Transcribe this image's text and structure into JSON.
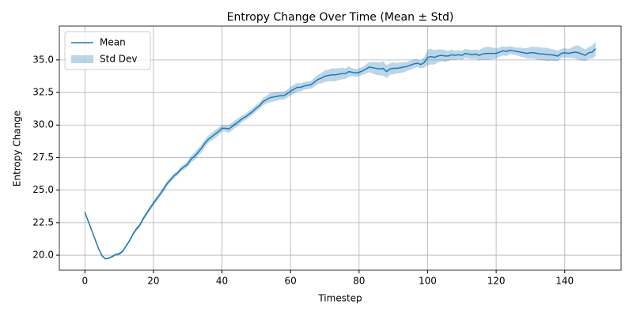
{
  "chart_data": {
    "type": "line",
    "title": "Entropy Change Over Time (Mean ± Std)",
    "x_label": "Timestep",
    "y_label": "Entropy Change",
    "x": [
      0,
      1,
      2,
      3,
      4,
      5,
      6,
      7,
      8,
      9,
      10,
      11,
      12,
      13,
      14,
      15,
      16,
      17,
      18,
      19,
      20,
      21,
      22,
      23,
      24,
      25,
      26,
      27,
      28,
      29,
      30,
      31,
      32,
      33,
      34,
      35,
      36,
      37,
      38,
      39,
      40,
      41,
      42,
      43,
      44,
      45,
      46,
      47,
      48,
      49,
      50,
      51,
      52,
      53,
      54,
      55,
      56,
      57,
      58,
      59,
      60,
      61,
      62,
      63,
      64,
      65,
      66,
      67,
      68,
      69,
      70,
      71,
      72,
      73,
      74,
      75,
      76,
      77,
      78,
      79,
      80,
      81,
      82,
      83,
      84,
      85,
      86,
      87,
      88,
      89,
      90,
      91,
      92,
      93,
      94,
      95,
      96,
      97,
      98,
      99,
      100,
      101,
      102,
      103,
      104,
      105,
      106,
      107,
      108,
      109,
      110,
      111,
      112,
      113,
      114,
      115,
      116,
      117,
      118,
      119,
      120,
      121,
      122,
      123,
      124,
      125,
      126,
      127,
      128,
      129,
      130,
      131,
      132,
      133,
      134,
      135,
      136,
      137,
      138,
      139,
      140,
      141,
      142,
      143,
      144,
      145,
      146,
      147,
      148,
      149
    ],
    "series": [
      {
        "name": "Mean",
        "color": "#1f77b4",
        "values": [
          23.3,
          22.6,
          21.9,
          21.2,
          20.5,
          19.95,
          19.72,
          19.78,
          19.9,
          20.05,
          20.1,
          20.3,
          20.7,
          21.1,
          21.6,
          22.0,
          22.3,
          22.8,
          23.2,
          23.6,
          24.0,
          24.35,
          24.7,
          25.1,
          25.5,
          25.8,
          26.1,
          26.3,
          26.6,
          26.8,
          27.0,
          27.4,
          27.6,
          27.9,
          28.2,
          28.6,
          28.9,
          29.1,
          29.3,
          29.5,
          29.75,
          29.75,
          29.7,
          29.9,
          30.1,
          30.3,
          30.5,
          30.65,
          30.85,
          31.05,
          31.3,
          31.5,
          31.8,
          31.95,
          32.1,
          32.15,
          32.2,
          32.25,
          32.25,
          32.4,
          32.6,
          32.75,
          32.9,
          32.9,
          33.0,
          33.05,
          33.1,
          33.3,
          33.5,
          33.6,
          33.75,
          33.8,
          33.85,
          33.85,
          33.9,
          33.95,
          33.95,
          34.1,
          34.05,
          34.0,
          34.05,
          34.15,
          34.3,
          34.45,
          34.4,
          34.35,
          34.3,
          34.35,
          34.1,
          34.3,
          34.35,
          34.35,
          34.4,
          34.45,
          34.5,
          34.6,
          34.7,
          34.75,
          34.65,
          34.8,
          35.2,
          35.25,
          35.2,
          35.3,
          35.35,
          35.3,
          35.3,
          35.4,
          35.35,
          35.4,
          35.35,
          35.5,
          35.45,
          35.4,
          35.45,
          35.35,
          35.45,
          35.5,
          35.5,
          35.5,
          35.5,
          35.6,
          35.7,
          35.65,
          35.75,
          35.7,
          35.65,
          35.6,
          35.55,
          35.5,
          35.55,
          35.55,
          35.5,
          35.45,
          35.45,
          35.4,
          35.4,
          35.35,
          35.3,
          35.5,
          35.55,
          35.5,
          35.55,
          35.6,
          35.55,
          35.45,
          35.35,
          35.55,
          35.6,
          35.85
        ]
      },
      {
        "name": "Std Dev",
        "color": "#1f77b4",
        "values": [
          0.05,
          0.05,
          0.05,
          0.05,
          0.05,
          0.06,
          0.06,
          0.07,
          0.08,
          0.1,
          0.12,
          0.12,
          0.12,
          0.13,
          0.14,
          0.15,
          0.15,
          0.16,
          0.17,
          0.18,
          0.2,
          0.2,
          0.2,
          0.22,
          0.2,
          0.2,
          0.2,
          0.18,
          0.2,
          0.2,
          0.22,
          0.25,
          0.3,
          0.3,
          0.3,
          0.28,
          0.28,
          0.3,
          0.3,
          0.3,
          0.25,
          0.25,
          0.3,
          0.3,
          0.3,
          0.28,
          0.25,
          0.25,
          0.25,
          0.25,
          0.25,
          0.25,
          0.3,
          0.3,
          0.35,
          0.35,
          0.35,
          0.3,
          0.3,
          0.3,
          0.35,
          0.35,
          0.35,
          0.3,
          0.3,
          0.3,
          0.3,
          0.35,
          0.35,
          0.4,
          0.45,
          0.45,
          0.5,
          0.5,
          0.45,
          0.45,
          0.4,
          0.4,
          0.3,
          0.3,
          0.3,
          0.3,
          0.35,
          0.4,
          0.45,
          0.5,
          0.5,
          0.55,
          0.5,
          0.45,
          0.45,
          0.4,
          0.4,
          0.4,
          0.35,
          0.35,
          0.35,
          0.3,
          0.3,
          0.4,
          0.6,
          0.6,
          0.55,
          0.5,
          0.45,
          0.45,
          0.4,
          0.4,
          0.35,
          0.35,
          0.35,
          0.35,
          0.35,
          0.35,
          0.35,
          0.4,
          0.45,
          0.5,
          0.5,
          0.45,
          0.4,
          0.35,
          0.35,
          0.35,
          0.3,
          0.3,
          0.3,
          0.35,
          0.35,
          0.4,
          0.45,
          0.45,
          0.5,
          0.5,
          0.5,
          0.5,
          0.45,
          0.45,
          0.4,
          0.35,
          0.35,
          0.35,
          0.4,
          0.5,
          0.55,
          0.5,
          0.45,
          0.45,
          0.5,
          0.55
        ]
      }
    ],
    "xlim": [
      -7.45,
      156.45
    ],
    "xticks": [
      0,
      20,
      40,
      60,
      80,
      100,
      120,
      140
    ],
    "ylim": [
      18.85,
      37.6
    ],
    "yticks": [
      {
        "value": 20,
        "label": "20.0"
      },
      22.5,
      {
        "value": 25,
        "label": "25.0"
      },
      27.5,
      {
        "value": 30,
        "label": "30.0"
      },
      32.5,
      {
        "value": 35,
        "label": "35.0"
      }
    ],
    "grid": true,
    "legend": "upper-left"
  }
}
